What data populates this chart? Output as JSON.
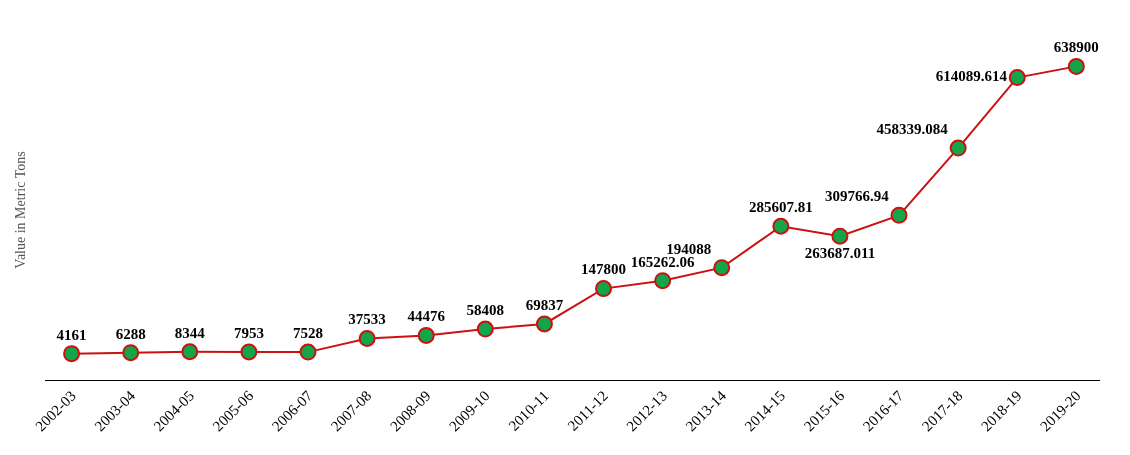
{
  "chart_data": {
    "type": "line",
    "ylabel": "Value in Metric Tons",
    "categories": [
      "2002-03",
      "2003-04",
      "2004-05",
      "2005-06",
      "2006-07",
      "2007-08",
      "2008-09",
      "2009-10",
      "2010-11",
      "2011-12",
      "2012-13",
      "2013-14",
      "2014-15",
      "2015-16",
      "2016-17",
      "2017-18",
      "2018-19",
      "2019-20"
    ],
    "series": [
      {
        "color": "#cc1111",
        "values": [
          4161,
          6288,
          8344,
          7953,
          7528,
          37533,
          44476,
          58408,
          69837,
          147800,
          165262.06,
          194088,
          285607.81,
          263687.011,
          309766.94,
          458339.084,
          614089.614,
          638900
        ]
      }
    ],
    "marker": "circle",
    "line_style": "solid",
    "data_labels": true
  }
}
